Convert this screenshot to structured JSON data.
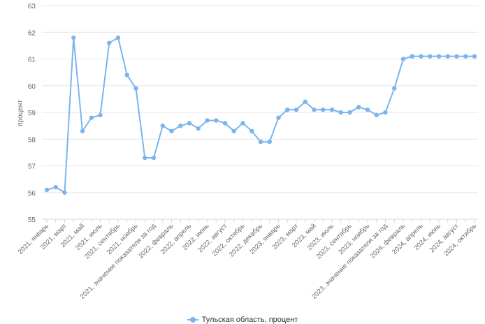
{
  "chart_data": {
    "type": "line",
    "ylabel": "процент",
    "ylim": [
      55,
      63
    ],
    "yticks": [
      55,
      56,
      57,
      58,
      59,
      60,
      61,
      62,
      63
    ],
    "grid": true,
    "legend_position": "bottom-center",
    "categories": [
      "2021, январь",
      "",
      "2021, март",
      "",
      "2021, май",
      "",
      "2021, июль",
      "",
      "2021, сентябрь",
      "",
      "2021, ноябрь",
      "",
      "2021, значение показателя за год",
      "",
      "2022, февраль",
      "",
      "2022, апрель",
      "",
      "2022, июнь",
      "",
      "2022, август",
      "",
      "2022, октябрь",
      "",
      "2022, декабрь",
      "",
      "2023, январь",
      "",
      "2023, март",
      "",
      "2023, май",
      "",
      "2023, июль",
      "",
      "2023, сентябрь",
      "",
      "2023, ноябрь",
      "",
      "2023, значение показателя за год",
      "",
      "2024, февраль",
      "",
      "2024, апрель",
      "",
      "2024, июнь",
      "",
      "2024, август",
      "",
      "2024, октябрь"
    ],
    "series": [
      {
        "name": "Тульская область, процент",
        "color": "#7cb5ec",
        "values": [
          56.1,
          56.2,
          56.0,
          61.8,
          58.3,
          58.8,
          58.9,
          61.6,
          61.8,
          60.4,
          59.9,
          57.3,
          57.3,
          58.5,
          58.3,
          58.5,
          58.6,
          58.4,
          58.7,
          58.7,
          58.6,
          58.3,
          58.6,
          58.3,
          57.9,
          57.9,
          58.8,
          59.1,
          59.1,
          59.4,
          59.1,
          59.1,
          59.1,
          59.0,
          59.0,
          59.2,
          59.1,
          58.9,
          59.0,
          59.9,
          61.0,
          61.1,
          61.1,
          61.1,
          61.1,
          61.1,
          61.1,
          61.1,
          61.1
        ]
      }
    ]
  }
}
